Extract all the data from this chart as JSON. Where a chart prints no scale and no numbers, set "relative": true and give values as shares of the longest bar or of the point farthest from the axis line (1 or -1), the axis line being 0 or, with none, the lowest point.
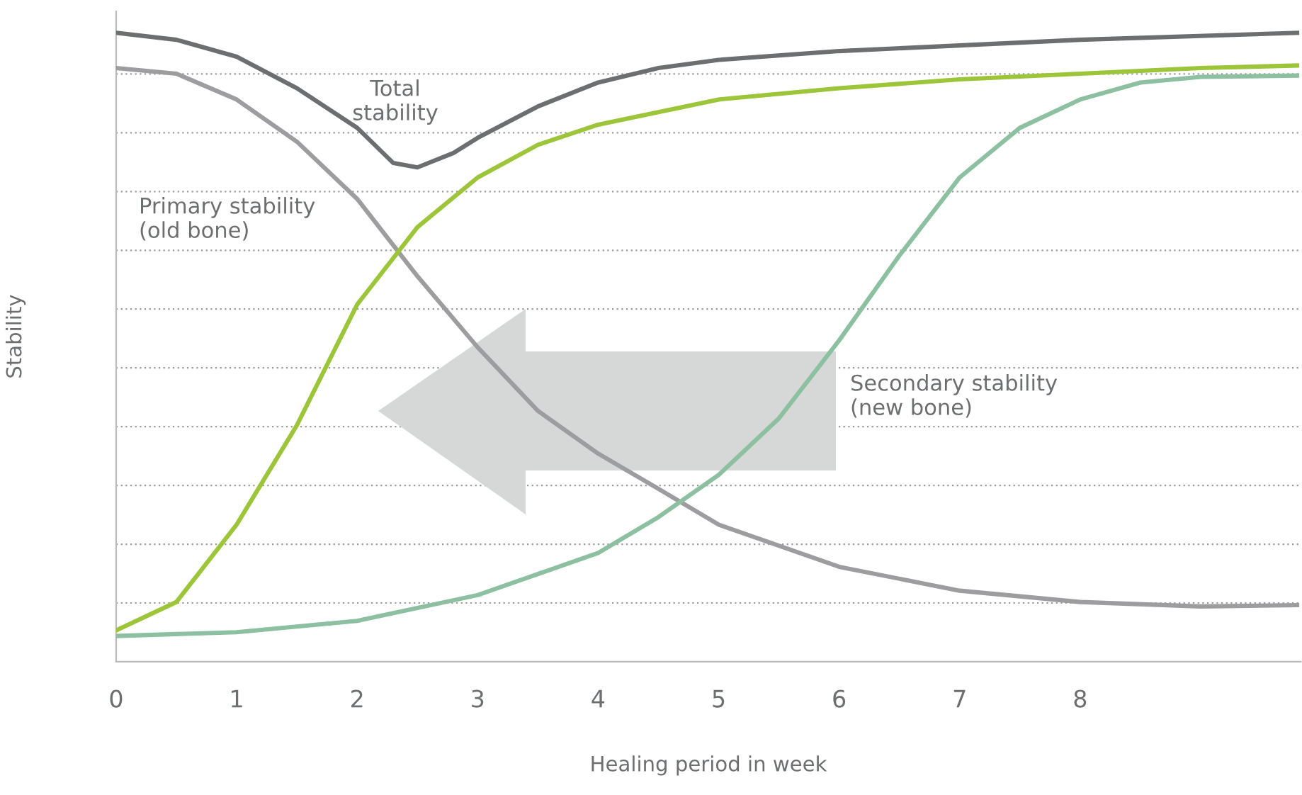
{
  "chart_data": {
    "type": "line",
    "relative": true,
    "xlabel": "Healing period in week",
    "ylabel": "Stability",
    "xlim": [
      0,
      9.83
    ],
    "xticks": [
      0,
      1,
      2,
      3,
      4,
      5,
      6,
      7,
      8
    ],
    "tick_labels": "x",
    "grid": "y",
    "series": [
      {
        "color": "#6d6e70",
        "x": [
          0,
          0.5,
          1,
          1.5,
          2,
          2.3,
          2.5,
          2.8,
          3,
          3.5,
          4,
          4.5,
          5,
          6,
          7,
          8,
          9.8
        ],
        "values": [
          1.0,
          0.989,
          0.962,
          0.912,
          0.849,
          0.793,
          0.786,
          0.809,
          0.833,
          0.883,
          0.921,
          0.944,
          0.957,
          0.971,
          0.98,
          0.989,
          1.0
        ]
      },
      {
        "color": "#9d9d9f",
        "x": [
          0,
          0.5,
          1,
          1.5,
          2,
          2.5,
          3,
          3.5,
          4,
          4.5,
          5,
          6,
          7,
          8,
          9,
          9.8
        ],
        "values": [
          0.944,
          0.935,
          0.894,
          0.827,
          0.736,
          0.613,
          0.5,
          0.399,
          0.331,
          0.275,
          0.218,
          0.151,
          0.113,
          0.095,
          0.088,
          0.09
        ]
      },
      {
        "color": "#9dc53a",
        "x": [
          0,
          0.5,
          1,
          1.5,
          2,
          2.5,
          3,
          3.5,
          4,
          5,
          6,
          7,
          8,
          9,
          9.8
        ],
        "values": [
          0.05,
          0.095,
          0.218,
          0.376,
          0.568,
          0.691,
          0.77,
          0.822,
          0.854,
          0.894,
          0.912,
          0.926,
          0.935,
          0.944,
          0.948
        ]
      },
      {
        "color": "#8cc0a0",
        "x": [
          0,
          1,
          2,
          3,
          4,
          4.5,
          5,
          5.5,
          6,
          6.5,
          7,
          7.5,
          8,
          8.5,
          9,
          9.8
        ],
        "values": [
          0.041,
          0.047,
          0.065,
          0.106,
          0.173,
          0.23,
          0.297,
          0.387,
          0.511,
          0.646,
          0.77,
          0.849,
          0.894,
          0.921,
          0.93,
          0.932
        ]
      }
    ],
    "annotations": [
      "Total\nstability",
      "Primary stability\n(old bone)",
      "Secondary stability\n(new bone)"
    ]
  }
}
